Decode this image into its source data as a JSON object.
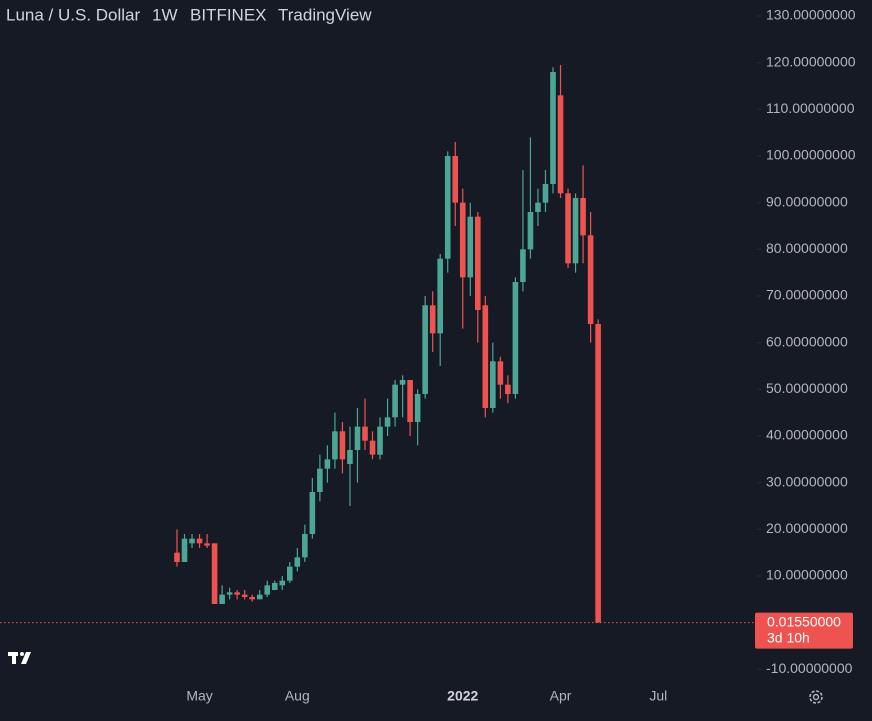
{
  "chart_data": {
    "type": "candlestick",
    "title": "Luna / U.S. Dollar",
    "interval": "1W",
    "exchange": "BITFINEX",
    "source": "TradingView",
    "categories": [
      null,
      null,
      null,
      "May",
      null,
      null,
      null,
      null,
      null,
      null,
      null,
      null,
      null,
      null,
      null,
      null,
      "Aug",
      null,
      null,
      null,
      null,
      null,
      null,
      null,
      null,
      null,
      null,
      null,
      null,
      null,
      null,
      null,
      null,
      null,
      null,
      null,
      null,
      null,
      "2022",
      null,
      null,
      null,
      null,
      null,
      null,
      null,
      null,
      null,
      null,
      null,
      null,
      "Apr",
      null,
      null,
      null,
      null,
      null,
      null,
      null,
      null,
      null,
      null,
      null,
      null,
      "Jul",
      null,
      null,
      null,
      null,
      null,
      null,
      null,
      null,
      null,
      null,
      null,
      null,
      null
    ],
    "open": [
      15,
      13,
      17,
      18,
      17,
      17,
      4,
      6,
      6.5,
      6,
      5.5,
      5,
      6,
      7,
      8,
      9,
      12,
      14,
      19,
      28,
      33,
      35,
      41,
      34,
      37,
      42,
      39,
      36,
      42,
      44,
      51,
      52,
      43,
      49,
      68,
      62,
      78,
      100,
      90,
      74,
      87,
      68,
      46,
      56,
      51,
      49,
      73,
      80,
      88,
      90,
      94,
      113,
      92,
      77,
      91,
      83,
      64,
      null,
      null,
      null,
      null,
      null,
      null,
      null,
      null,
      null,
      null,
      null,
      null,
      null,
      null,
      null,
      null,
      null,
      null,
      null,
      null,
      null
    ],
    "high": [
      20,
      19,
      19,
      19,
      19,
      17,
      8,
      7.5,
      7,
      7,
      6,
      7,
      9,
      9,
      10,
      13,
      16,
      21,
      31,
      36,
      38,
      45,
      43,
      42,
      46,
      48,
      41,
      44,
      48,
      52,
      53,
      52,
      50,
      70,
      71,
      79,
      101,
      103,
      93,
      90,
      88,
      70,
      60,
      57,
      53,
      74,
      97,
      104,
      93,
      97,
      119,
      119.5,
      93,
      92,
      98,
      88,
      65,
      null,
      null,
      null,
      null,
      null,
      null,
      null,
      null,
      null,
      null,
      null,
      null,
      null,
      null,
      null,
      null,
      null,
      null,
      null,
      null,
      null
    ],
    "low": [
      12,
      13,
      16,
      16,
      16,
      4,
      4,
      5,
      5,
      5,
      4.5,
      5,
      5.5,
      7,
      7,
      8.5,
      11,
      13,
      18,
      26,
      30,
      33,
      32,
      25,
      30,
      37,
      35,
      35,
      40,
      42,
      44,
      40,
      38,
      48,
      58,
      55,
      75,
      85,
      63,
      70,
      60,
      44,
      45,
      48,
      47,
      48,
      71,
      78,
      85,
      88,
      92,
      91,
      76,
      75,
      77,
      60,
      0,
      null,
      null,
      null,
      null,
      null,
      null,
      null,
      null,
      null,
      null,
      null,
      null,
      null,
      null,
      null,
      null,
      null,
      null,
      null,
      null,
      null
    ],
    "close": [
      13,
      18,
      18,
      17,
      16.5,
      4,
      6,
      6.5,
      6,
      5.5,
      5,
      6,
      8,
      8.5,
      9,
      12,
      14,
      19,
      28,
      33,
      35,
      41,
      35,
      37,
      42,
      39,
      36,
      42,
      44,
      51,
      52,
      43,
      49,
      68,
      62,
      78,
      100,
      90,
      74,
      87,
      67,
      46,
      56,
      51,
      49,
      73,
      80,
      88,
      90,
      94,
      118,
      92,
      77,
      91,
      83,
      64,
      0.0155,
      null,
      null,
      null,
      null,
      null,
      null,
      null,
      null,
      null,
      null,
      null,
      null,
      null,
      null,
      null,
      null,
      null,
      null,
      null,
      null,
      null
    ],
    "up_color": "#4ca695",
    "down_color": "#ef5350",
    "ylim": [
      -14,
      133
    ],
    "yticks": [
      {
        "value": -10,
        "label": "-10.00000000"
      },
      {
        "value": 10,
        "label": "10.00000000"
      },
      {
        "value": 20,
        "label": "20.00000000"
      },
      {
        "value": 30,
        "label": "30.00000000"
      },
      {
        "value": 40,
        "label": "40.00000000"
      },
      {
        "value": 50,
        "label": "50.00000000"
      },
      {
        "value": 60,
        "label": "60.00000000"
      },
      {
        "value": 70,
        "label": "70.00000000"
      },
      {
        "value": 80,
        "label": "80.00000000"
      },
      {
        "value": 90,
        "label": "90.00000000"
      },
      {
        "value": 100,
        "label": "100.00000000"
      },
      {
        "value": 110,
        "label": "110.00000000"
      },
      {
        "value": 120,
        "label": "120.00000000"
      },
      {
        "value": 130,
        "label": "130.00000000"
      }
    ],
    "last_price": {
      "value": 0.0155,
      "label": "0.01550000",
      "countdown": "3d 10h"
    },
    "grid": false
  }
}
